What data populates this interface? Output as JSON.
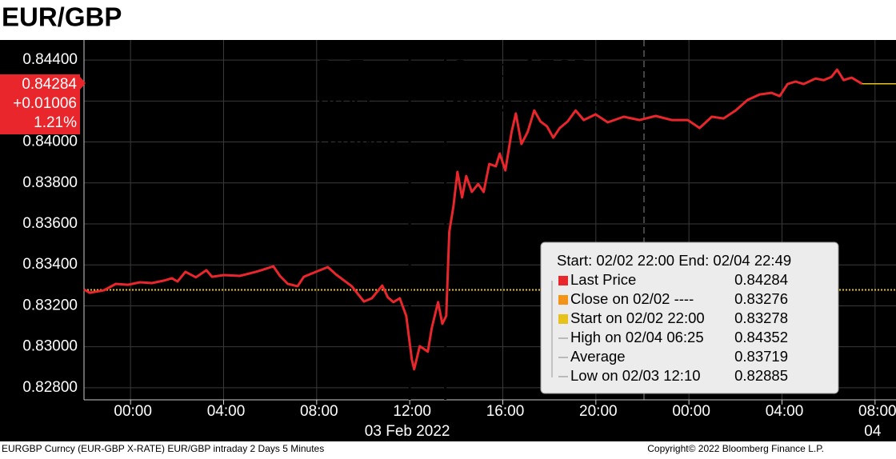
{
  "chart_data": {
    "type": "line",
    "title": "EUR/GBP",
    "x": [
      0.0,
      0.24,
      0.86,
      1.37,
      1.89,
      2.41,
      2.92,
      3.44,
      3.78,
      4.02,
      4.36,
      4.81,
      5.26,
      5.5,
      6.01,
      6.7,
      7.39,
      7.73,
      8.14,
      8.42,
      8.76,
      9.18,
      9.45,
      9.97,
      10.48,
      10.82,
      11.51,
      12.03,
      12.37,
      12.82,
      13.06,
      13.3,
      13.57,
      13.85,
      14.09,
      14.19,
      14.43,
      14.78,
      14.95,
      15.22,
      15.4,
      15.57,
      15.7,
      15.88,
      16.05,
      16.25,
      16.43,
      16.67,
      16.94,
      17.18,
      17.42,
      17.7,
      17.87,
      18.11,
      18.38,
      18.56,
      18.8,
      19.07,
      19.35,
      19.62,
      19.9,
      20.17,
      20.45,
      20.79,
      21.13,
      21.48,
      21.99,
      22.51,
      23.2,
      23.88,
      24.57,
      25.26,
      25.95,
      26.46,
      26.98,
      27.49,
      28.01,
      28.52,
      29.04,
      29.55,
      29.9,
      30.24,
      30.58,
      30.93,
      31.44,
      31.79,
      32.13,
      32.37,
      32.65,
      32.99,
      33.44
    ],
    "series": [
      {
        "name": "Last Price",
        "color": "#e8262b",
        "values": [
          0.8328,
          0.83264,
          0.83276,
          0.83307,
          0.83303,
          0.83315,
          0.83311,
          0.83323,
          0.83335,
          0.83319,
          0.83366,
          0.83339,
          0.83374,
          0.83342,
          0.8335,
          0.83346,
          0.83366,
          0.83378,
          0.83393,
          0.83346,
          0.83307,
          0.83296,
          0.83342,
          0.83366,
          0.83389,
          0.83354,
          0.83296,
          0.83221,
          0.83237,
          0.83299,
          0.83241,
          0.83218,
          0.83237,
          0.83151,
          0.82937,
          0.8289,
          0.83003,
          0.82976,
          0.83093,
          0.83218,
          0.83112,
          0.83151,
          0.83561,
          0.83686,
          0.83854,
          0.83729,
          0.83834,
          0.83756,
          0.83795,
          0.83756,
          0.83893,
          0.83881,
          0.83943,
          0.83861,
          0.84049,
          0.84139,
          0.8399,
          0.84049,
          0.84154,
          0.841,
          0.84076,
          0.84021,
          0.84068,
          0.841,
          0.84154,
          0.84107,
          0.84135,
          0.84096,
          0.84123,
          0.84107,
          0.84127,
          0.84107,
          0.84107,
          0.84068,
          0.84123,
          0.84115,
          0.84154,
          0.84205,
          0.84232,
          0.8424,
          0.84224,
          0.84283,
          0.84295,
          0.84283,
          0.8431,
          0.84302,
          0.84318,
          0.84353,
          0.84302,
          0.84314,
          0.84284
        ]
      }
    ],
    "start_line": {
      "value": 0.83278,
      "color": "#e6c21a"
    },
    "xlim": [
      0,
      34.9
    ],
    "xticks": [
      {
        "value": 2,
        "label": "00:00"
      },
      {
        "value": 6,
        "label": "04:00"
      },
      {
        "value": 10,
        "label": "08:00"
      },
      {
        "value": 14,
        "label": "12:00"
      },
      {
        "value": 18,
        "label": "16:00"
      },
      {
        "value": 22,
        "label": "20:00"
      },
      {
        "value": 26,
        "label": "00:00"
      },
      {
        "value": 30,
        "label": "04:00"
      },
      {
        "value": 34,
        "label": "08:00"
      }
    ],
    "date_labels": [
      {
        "value": 14,
        "label": "03 Feb 2022"
      },
      {
        "value": 34,
        "label": "04"
      }
    ],
    "ylim": [
      0.82741,
      0.84498
    ],
    "yticks": [
      {
        "value": 0.828,
        "label": "0.82800"
      },
      {
        "value": 0.83,
        "label": "0.83000"
      },
      {
        "value": 0.832,
        "label": "0.83200"
      },
      {
        "value": 0.834,
        "label": "0.83400"
      },
      {
        "value": 0.836,
        "label": "0.83600"
      },
      {
        "value": 0.838,
        "label": "0.83800"
      },
      {
        "value": 0.84,
        "label": "0.84000"
      },
      {
        "value": 0.842,
        "label": "0.84200"
      },
      {
        "value": 0.844,
        "label": "0.84400"
      }
    ],
    "grid": true,
    "annotations": [
      {
        "x": 14,
        "lines": [
          "BoE",
          "press",
          "release"
        ]
      },
      {
        "x": 15.53,
        "lines": [
          "Start of ECB",
          "press conference"
        ]
      }
    ],
    "badge": {
      "price": "0.84284",
      "change": "+0.01006",
      "percent": "1.21%"
    },
    "legend": {
      "header": "Start: 02/02 22:00 End: 02/04 22:49",
      "rows": [
        {
          "label": "Last Price",
          "value": "0.84284",
          "color": "#e8262b"
        },
        {
          "label": "Close on 02/02 ----",
          "value": "0.83276",
          "color": "#f39419"
        },
        {
          "label": "Start on 02/02 22:00",
          "value": "0.83278",
          "color": "#e6c21a"
        },
        {
          "label": "High on 02/04 06:25",
          "value": "0.84352"
        },
        {
          "label": "Average",
          "value": "0.83719"
        },
        {
          "label": "Low on 02/03 12:10",
          "value": "0.82885"
        }
      ]
    },
    "footer_left": "EURGBP Curncy (EUR-GBP X-RATE) EUR/GBP intraday 2 Days 5 Minutes",
    "footer_right": "Copyright© 2022 Bloomberg Finance L.P."
  }
}
